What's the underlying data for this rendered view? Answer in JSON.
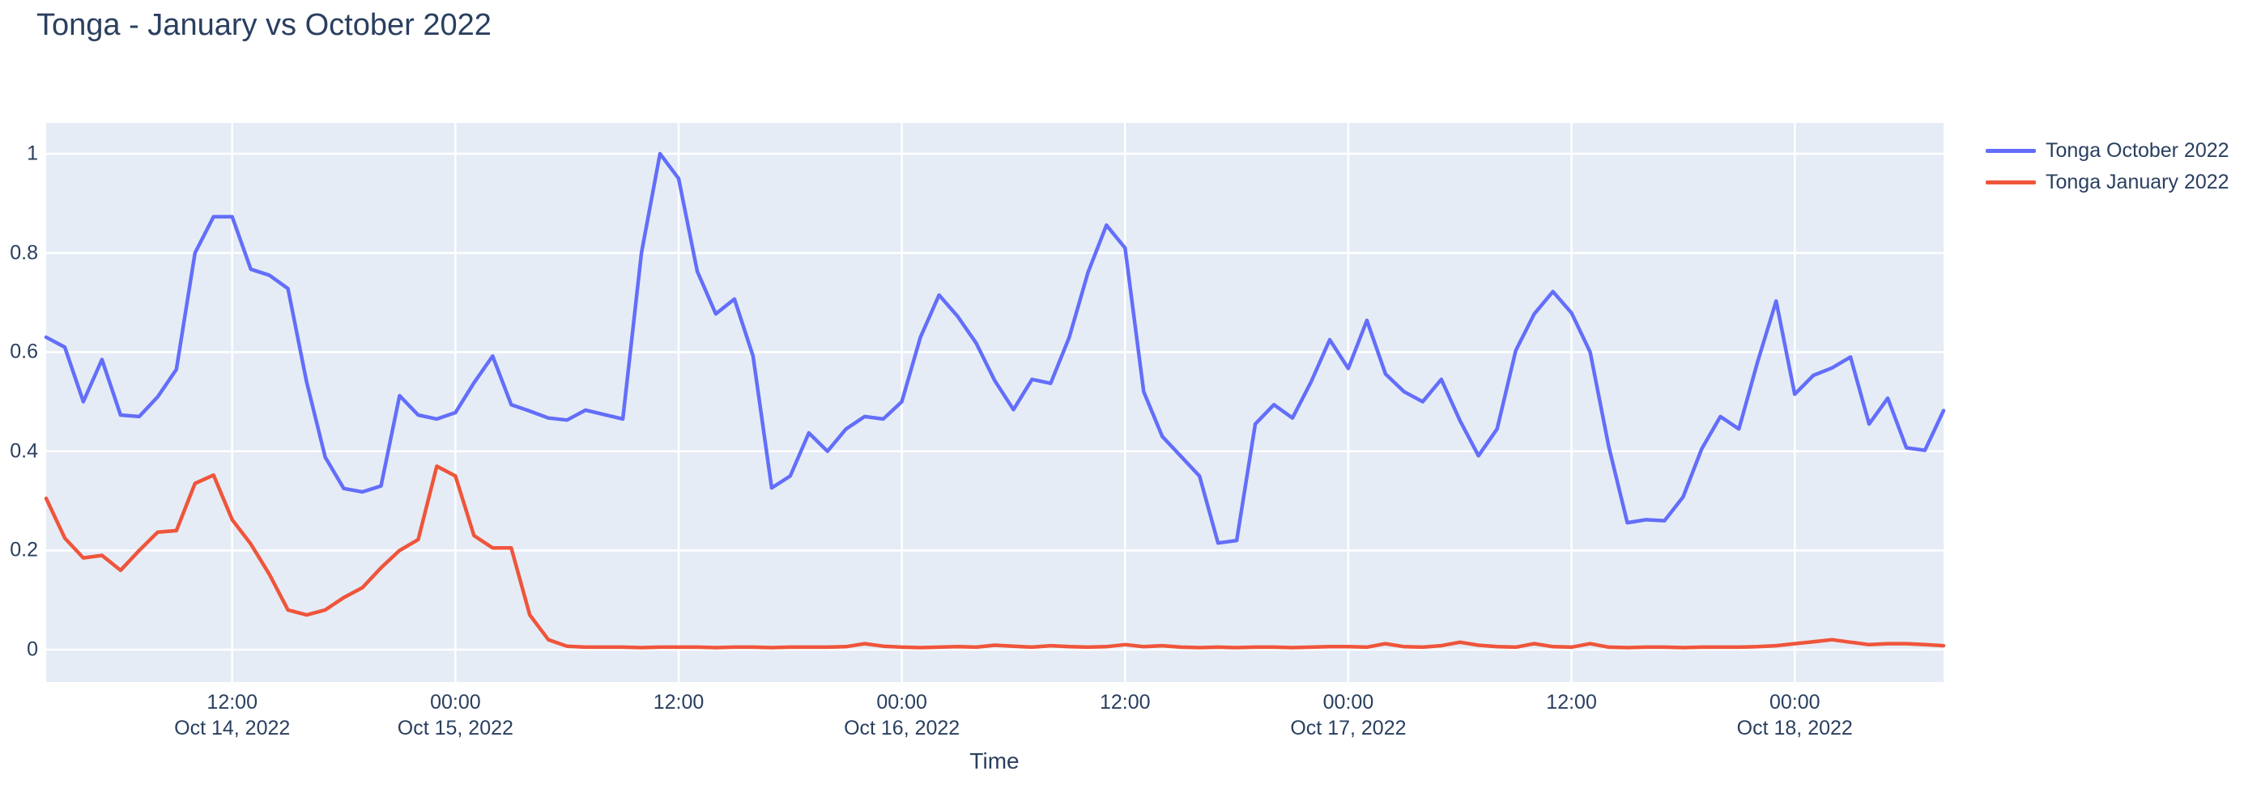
{
  "page": {
    "title": "Tonga - January vs October 2022"
  },
  "colors": {
    "series_october": "#636EFA",
    "series_january": "#EF553B",
    "plot_background": "#E5ECF6",
    "gridline": "#FFFFFF",
    "text": "#2a3f5f"
  },
  "legend": {
    "items": [
      {
        "label": "Tonga October 2022",
        "color": "#636EFA"
      },
      {
        "label": "Tonga January 2022",
        "color": "#EF553B"
      }
    ]
  },
  "chart_data": {
    "type": "line",
    "title": "Tonga - January vs October 2022",
    "xlabel": "Time",
    "ylabel": "",
    "x_start": "2022-10-14 02:00",
    "x_step_hours": 1,
    "n_points": 103,
    "ylim": [
      -0.0653,
      1.062
    ],
    "grid": true,
    "legend_position": "right-top",
    "yticks": [
      {
        "v": 0,
        "label": "0"
      },
      {
        "v": 0.2,
        "label": "0.2"
      },
      {
        "v": 0.4,
        "label": "0.4"
      },
      {
        "v": 0.6,
        "label": "0.6"
      },
      {
        "v": 0.8,
        "label": "0.8"
      },
      {
        "v": 1,
        "label": "1"
      }
    ],
    "xticks": [
      {
        "i": 10,
        "time": "12:00",
        "date": "Oct 14, 2022"
      },
      {
        "i": 22,
        "time": "00:00",
        "date": "Oct 15, 2022"
      },
      {
        "i": 34,
        "time": "12:00",
        "date": ""
      },
      {
        "i": 46,
        "time": "00:00",
        "date": "Oct 16, 2022"
      },
      {
        "i": 58,
        "time": "12:00",
        "date": ""
      },
      {
        "i": 70,
        "time": "00:00",
        "date": "Oct 17, 2022"
      },
      {
        "i": 82,
        "time": "12:00",
        "date": ""
      },
      {
        "i": 94,
        "time": "00:00",
        "date": "Oct 18, 2022"
      }
    ],
    "series": [
      {
        "name": "Tonga October 2022",
        "color": "#636EFA",
        "values": [
          0.63,
          0.61,
          0.5,
          0.585,
          0.473,
          0.47,
          0.51,
          0.565,
          0.8,
          0.873,
          0.873,
          0.767,
          0.755,
          0.728,
          0.54,
          0.388,
          0.325,
          0.318,
          0.33,
          0.512,
          0.473,
          0.465,
          0.478,
          0.538,
          0.592,
          0.494,
          0.481,
          0.467,
          0.463,
          0.483,
          0.474,
          0.465,
          0.8,
          1.0,
          0.95,
          0.763,
          0.677,
          0.707,
          0.592,
          0.326,
          0.35,
          0.437,
          0.4,
          0.445,
          0.47,
          0.465,
          0.5,
          0.63,
          0.715,
          0.672,
          0.618,
          0.542,
          0.484,
          0.545,
          0.537,
          0.63,
          0.76,
          0.856,
          0.81,
          0.52,
          0.43,
          0.39,
          0.35,
          0.215,
          0.22,
          0.455,
          0.494,
          0.467,
          0.54,
          0.625,
          0.567,
          0.664,
          0.556,
          0.52,
          0.5,
          0.545,
          0.462,
          0.391,
          0.445,
          0.603,
          0.677,
          0.722,
          0.679,
          0.6,
          0.41,
          0.256,
          0.262,
          0.26,
          0.308,
          0.405,
          0.47,
          0.445,
          0.58,
          0.703,
          0.515,
          0.553,
          0.568,
          0.59,
          0.455,
          0.507,
          0.407,
          0.402,
          0.482
        ]
      },
      {
        "name": "Tonga January 2022",
        "color": "#EF553B",
        "values": [
          0.305,
          0.225,
          0.185,
          0.19,
          0.16,
          0.2,
          0.237,
          0.24,
          0.335,
          0.352,
          0.262,
          0.213,
          0.152,
          0.08,
          0.07,
          0.08,
          0.105,
          0.125,
          0.165,
          0.2,
          0.222,
          0.37,
          0.35,
          0.23,
          0.205,
          0.205,
          0.07,
          0.02,
          0.007,
          0.005,
          0.005,
          0.005,
          0.004,
          0.005,
          0.005,
          0.005,
          0.004,
          0.005,
          0.005,
          0.004,
          0.005,
          0.005,
          0.005,
          0.006,
          0.012,
          0.007,
          0.005,
          0.004,
          0.005,
          0.006,
          0.005,
          0.009,
          0.007,
          0.005,
          0.008,
          0.006,
          0.005,
          0.006,
          0.01,
          0.006,
          0.008,
          0.005,
          0.004,
          0.005,
          0.004,
          0.005,
          0.005,
          0.004,
          0.005,
          0.006,
          0.006,
          0.005,
          0.012,
          0.006,
          0.005,
          0.008,
          0.015,
          0.009,
          0.006,
          0.005,
          0.012,
          0.006,
          0.005,
          0.012,
          0.005,
          0.004,
          0.005,
          0.005,
          0.004,
          0.005,
          0.005,
          0.005,
          0.006,
          0.008,
          0.012,
          0.016,
          0.02,
          0.015,
          0.01,
          0.012,
          0.012,
          0.01,
          0.008
        ]
      }
    ]
  },
  "x_axis": {
    "title": "Time"
  }
}
